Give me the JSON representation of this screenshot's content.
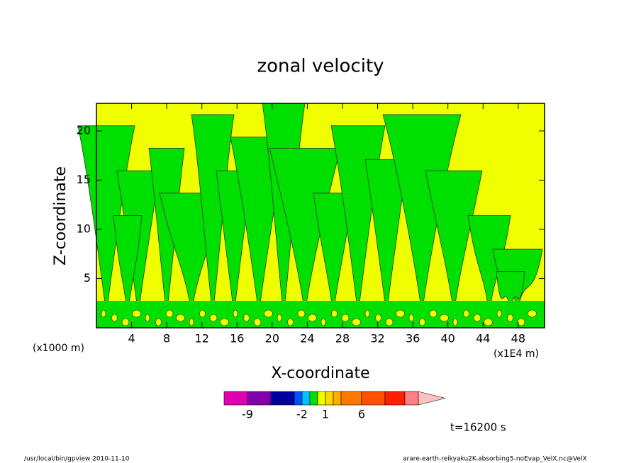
{
  "chart_data": {
    "type": "contour",
    "title": "zonal velocity",
    "x_label": "X-coordinate",
    "y_label": "Z-coordinate",
    "x_unit_left": "(x1000 m)",
    "x_unit_right": "(x1E4 m)",
    "xlim": [
      0,
      51
    ],
    "xticks": [
      4,
      8,
      12,
      16,
      20,
      24,
      28,
      32,
      36,
      40,
      44,
      48
    ],
    "ylim": [
      0,
      22.8
    ],
    "yticks": [
      5,
      10,
      15,
      20
    ],
    "field_colors": [
      "#f0ff00",
      "#00e000"
    ],
    "colorbar_colors": [
      "#e000b0",
      "#8000b0",
      "#0000a0",
      "#0050ff",
      "#00c0ff",
      "#00e000",
      "#f0ff00",
      "#ffd800",
      "#ffb000",
      "#ff7800",
      "#ff5000",
      "#ff2000",
      "#ff8080",
      "#ffc0c0"
    ],
    "colorbar_ticks": [
      -9,
      -2,
      1,
      6
    ],
    "time_label": "t=16200 s",
    "footer_left": "/usr/local/bin/gpview  2010-11-10",
    "footer_right": "arare-earth-reikyaku2K-absorbing5-noEvap_VelX.nc@VelX"
  }
}
